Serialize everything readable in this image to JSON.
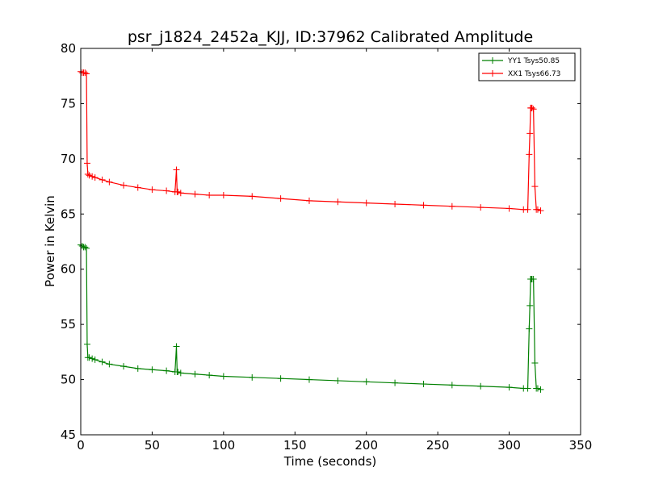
{
  "chart_data": {
    "type": "line",
    "title": "psr_j1824_2452a_KJJ, ID:37962 Calibrated Amplitude",
    "xlabel": "Time (seconds)",
    "ylabel": "Power in Kelvin",
    "xlim": [
      0,
      350
    ],
    "ylim": [
      45,
      80
    ],
    "xticks": [
      0,
      50,
      100,
      150,
      200,
      250,
      300,
      350
    ],
    "yticks": [
      45,
      50,
      55,
      60,
      65,
      70,
      75,
      80
    ],
    "grid": false,
    "legend_position": "top-right",
    "series": [
      {
        "name": "YY1 Tsys50.85",
        "color": "#008000",
        "marker": "+",
        "x": [
          0,
          1,
          2,
          3,
          4,
          4.5,
          5,
          6,
          8,
          10,
          15,
          20,
          30,
          40,
          50,
          60,
          66,
          67,
          67.5,
          68,
          70,
          80,
          90,
          100,
          120,
          140,
          160,
          180,
          200,
          220,
          240,
          260,
          280,
          300,
          310,
          313,
          314,
          314.5,
          315,
          315.5,
          316,
          317,
          318,
          319,
          320,
          322
        ],
        "y": [
          62.2,
          62.1,
          62.0,
          62.0,
          61.9,
          53.2,
          52.0,
          52.0,
          51.9,
          51.8,
          51.6,
          51.4,
          51.2,
          51.0,
          50.9,
          50.8,
          50.7,
          53.0,
          50.7,
          50.7,
          50.6,
          50.5,
          50.4,
          50.3,
          50.2,
          50.1,
          50.0,
          49.9,
          49.8,
          49.7,
          49.6,
          49.5,
          49.4,
          49.3,
          49.2,
          49.2,
          54.6,
          56.7,
          59.1,
          59.1,
          59.1,
          59.1,
          51.5,
          49.2,
          49.2,
          49.1
        ]
      },
      {
        "name": "XX1 Tsys66.73",
        "color": "#ff0000",
        "marker": "+",
        "x": [
          0,
          1,
          2,
          3,
          4,
          4.5,
          5,
          6,
          8,
          10,
          15,
          20,
          30,
          40,
          50,
          60,
          66,
          67,
          67.5,
          68,
          70,
          80,
          90,
          100,
          120,
          140,
          160,
          180,
          200,
          220,
          240,
          260,
          280,
          300,
          310,
          313,
          314,
          314.5,
          315,
          315.5,
          316,
          317,
          318,
          319,
          320,
          322
        ],
        "y": [
          77.9,
          77.8,
          77.8,
          77.8,
          77.7,
          69.6,
          68.6,
          68.5,
          68.4,
          68.3,
          68.1,
          67.9,
          67.6,
          67.4,
          67.2,
          67.1,
          67.0,
          69.0,
          67.0,
          67.0,
          66.9,
          66.8,
          66.7,
          66.7,
          66.6,
          66.4,
          66.2,
          66.1,
          66.0,
          65.9,
          65.8,
          65.7,
          65.6,
          65.5,
          65.4,
          65.4,
          70.4,
          72.3,
          74.6,
          74.6,
          74.6,
          74.5,
          67.5,
          65.4,
          65.4,
          65.3
        ]
      }
    ]
  }
}
